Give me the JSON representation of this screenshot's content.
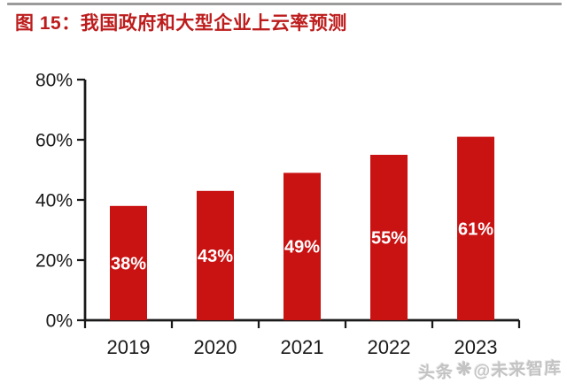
{
  "header": {
    "title": "图 15：我国政府和大型企业上云率预测",
    "title_color": "#bd1c1c",
    "divider_color": "#9b9b9b"
  },
  "chart_data": {
    "type": "bar",
    "title": "我国政府和大型企业上云率预测",
    "categories": [
      "2019",
      "2020",
      "2021",
      "2022",
      "2023"
    ],
    "values": [
      38,
      43,
      49,
      55,
      61
    ],
    "value_labels": [
      "38%",
      "43%",
      "49%",
      "55%",
      "61%"
    ],
    "xlabel": "",
    "ylabel": "",
    "ylim": [
      0,
      80
    ],
    "ytick_interval": 20,
    "ytick_labels": [
      "0%",
      "20%",
      "40%",
      "60%",
      "80%"
    ],
    "grid": false,
    "legend": false,
    "bar_color": "#c91212",
    "bar_label_color": "#ffffff",
    "axis_color": "#1a1a1a",
    "tick_label_color": "#1a1a1a"
  },
  "watermark": {
    "prefix": "头条",
    "icon": "sparkle-icon",
    "icon_glyph": "❋",
    "handle": "@未来智库",
    "color": "#c3c3c3"
  }
}
